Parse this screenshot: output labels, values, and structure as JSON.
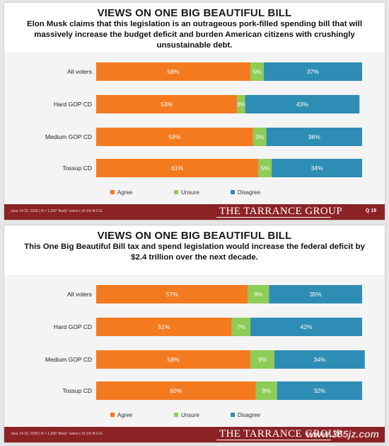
{
  "colors": {
    "agree": "#f47a20",
    "unsure": "#8dcc56",
    "disagree": "#2e8db5",
    "footer": "#8b2226"
  },
  "slides": [
    {
      "title": "VIEWS ON ONE BIG BEAUTIFUL BILL",
      "subtitle": "Elon Musk claims that this legislation is an outrageous pork-filled spending bill that will massively increase the budget deficit and burden American citizens with crushingly unsustainable debt.",
      "footer_note": "June 14-15, 2025 | N = 1,000 \"likely\" voters | ±3.1% M.O.E.",
      "brand": "THE TARRANCE GROUP",
      "question": "Q 19",
      "chart_data": {
        "type": "bar",
        "orientation": "horizontal",
        "stacked": true,
        "categories": [
          "All voters",
          "Hard GOP CD",
          "Medium GOP CD",
          "Tossup CD"
        ],
        "series": [
          {
            "name": "Agree",
            "values": [
              58,
              53,
              59,
              61
            ],
            "labels": [
              "58%",
              "53%",
              "59%",
              "61%"
            ]
          },
          {
            "name": "Unsure",
            "values": [
              5,
              3,
              5,
              5
            ],
            "labels": [
              "5%",
              "3%",
              "5%",
              "5%"
            ]
          },
          {
            "name": "Disagree",
            "values": [
              37,
              43,
              36,
              34
            ],
            "labels": [
              "37%",
              "43%",
              "36%",
              "34%"
            ]
          }
        ],
        "xlim": [
          0,
          100
        ],
        "legend": "bottom",
        "grid": false
      }
    },
    {
      "title": "VIEWS ON ONE BIG BEAUTIFUL BILL",
      "subtitle": "This One Big Beautiful Bill tax and spend legislation would increase the federal deficit by $2.4 trillion over the next decade.",
      "footer_note": "June 14-15, 2025 | N = 1,000 \"likely\" voters | ±3.1% M.O.E.",
      "brand": "THE TARRANCE GROUP",
      "watermark": "www.365jz.com",
      "chart_data": {
        "type": "bar",
        "orientation": "horizontal",
        "stacked": true,
        "categories": [
          "All voters",
          "Hard GOP CD",
          "Medium GOP CD",
          "Tossup CD"
        ],
        "series": [
          {
            "name": "Agree",
            "values": [
              57,
              51,
              58,
              60
            ],
            "labels": [
              "57%",
              "51%",
              "58%",
              "60%"
            ]
          },
          {
            "name": "Unsure",
            "values": [
              8,
              7,
              9,
              8
            ],
            "labels": [
              "8%",
              "7%",
              "9%",
              "8%"
            ]
          },
          {
            "name": "Disagree",
            "values": [
              35,
              42,
              34,
              32
            ],
            "labels": [
              "35%",
              "42%",
              "34%",
              "32%"
            ]
          }
        ],
        "xlim": [
          0,
          100
        ],
        "legend": "bottom",
        "grid": false
      }
    }
  ]
}
